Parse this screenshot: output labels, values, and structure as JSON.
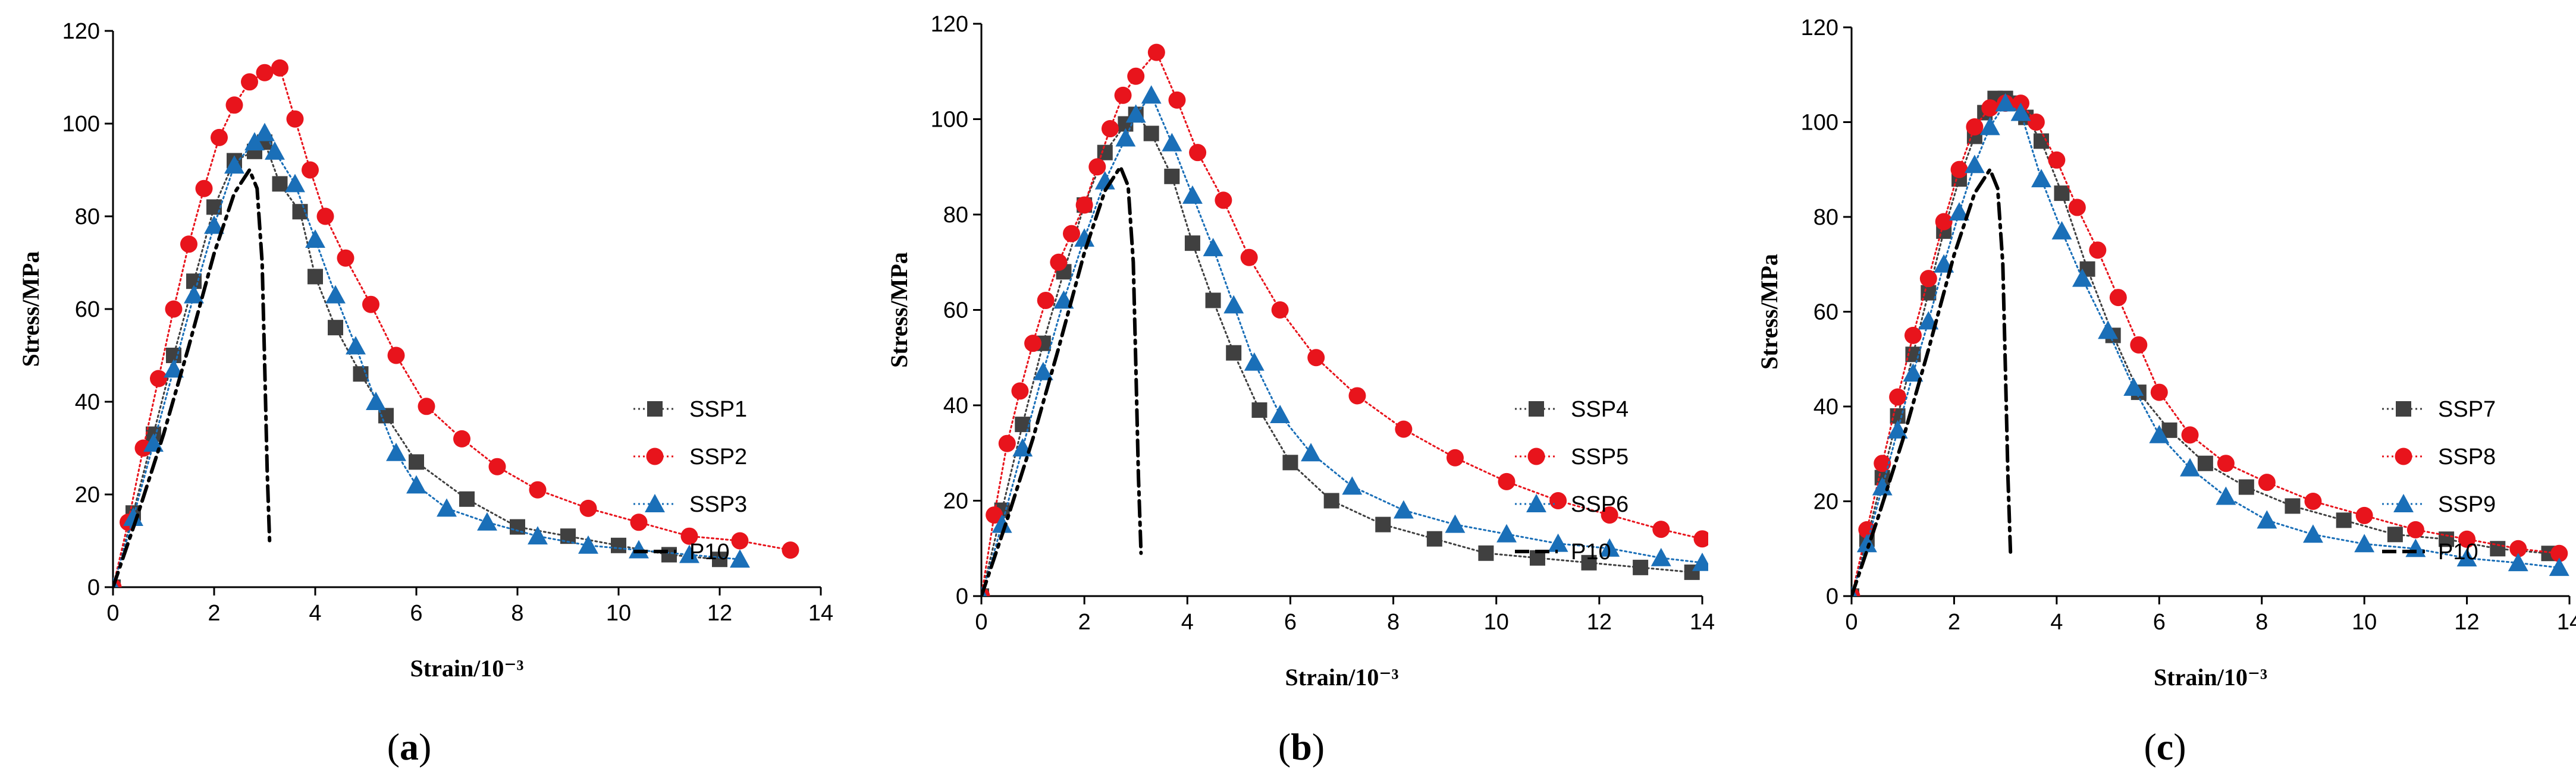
{
  "chart_data": [
    {
      "type": "line",
      "panel_label": "a",
      "xlabel": "Strain/10⁻³",
      "ylabel": "Stress/MPa",
      "xlim": [
        0,
        14
      ],
      "ylim": [
        0,
        120
      ],
      "xticks": [
        0,
        2,
        4,
        6,
        8,
        10,
        12,
        14
      ],
      "yticks": [
        0,
        20,
        40,
        60,
        80,
        100,
        120
      ],
      "legend_position": "right",
      "series": [
        {
          "name": "SSP1",
          "color": "#404040",
          "marker": "square",
          "line_style": "dotted",
          "x": [
            0,
            0.4,
            0.8,
            1.2,
            1.6,
            2.0,
            2.4,
            2.8,
            3.0,
            3.3,
            3.7,
            4.0,
            4.4,
            4.9,
            5.4,
            6.0,
            7.0,
            8.0,
            9.0,
            10.0,
            11.0,
            12.0
          ],
          "y": [
            0,
            16,
            33,
            50,
            66,
            82,
            92,
            94,
            96,
            87,
            81,
            67,
            56,
            46,
            37,
            27,
            19,
            13,
            11,
            9,
            7,
            6
          ]
        },
        {
          "name": "SSP2",
          "color": "#e8141c",
          "marker": "circle",
          "line_style": "dotted",
          "x": [
            0,
            0.3,
            0.6,
            0.9,
            1.2,
            1.5,
            1.8,
            2.1,
            2.4,
            2.7,
            3.0,
            3.3,
            3.6,
            3.9,
            4.2,
            4.6,
            5.1,
            5.6,
            6.2,
            6.9,
            7.6,
            8.4,
            9.4,
            10.4,
            11.4,
            12.4,
            13.4
          ],
          "y": [
            0,
            14,
            30,
            45,
            60,
            74,
            86,
            97,
            104,
            109,
            111,
            112,
            101,
            90,
            80,
            71,
            61,
            50,
            39,
            32,
            26,
            21,
            17,
            14,
            11,
            10,
            8
          ]
        },
        {
          "name": "SSP3",
          "color": "#1a6fb8",
          "marker": "triangle",
          "line_style": "dotted",
          "x": [
            0,
            0.4,
            0.8,
            1.2,
            1.6,
            2.0,
            2.4,
            2.8,
            3.0,
            3.2,
            3.6,
            4.0,
            4.4,
            4.8,
            5.2,
            5.6,
            6.0,
            6.6,
            7.4,
            8.4,
            9.4,
            10.4,
            11.4,
            12.4
          ],
          "y": [
            0,
            15,
            31,
            47,
            63,
            78,
            91,
            96,
            98,
            94,
            87,
            75,
            63,
            52,
            40,
            29,
            22,
            17,
            14,
            11,
            9,
            8,
            7,
            6
          ]
        },
        {
          "name": "P10",
          "color": "#000000",
          "marker": "none",
          "line_style": "dashdot",
          "x": [
            0,
            0.5,
            1.0,
            1.5,
            2.0,
            2.4,
            2.7,
            2.85,
            2.95,
            3.0,
            3.05,
            3.1
          ],
          "y": [
            0,
            16,
            33,
            52,
            72,
            85,
            90,
            86,
            70,
            48,
            25,
            9
          ]
        }
      ]
    },
    {
      "type": "line",
      "panel_label": "b",
      "xlabel": "Strain/10⁻³",
      "ylabel": "Stress/MPa",
      "xlim": [
        0,
        14
      ],
      "ylim": [
        0,
        120
      ],
      "xticks": [
        0,
        2,
        4,
        6,
        8,
        10,
        12,
        14
      ],
      "yticks": [
        0,
        20,
        40,
        60,
        80,
        100,
        120
      ],
      "legend_position": "right",
      "series": [
        {
          "name": "SSP4",
          "color": "#404040",
          "marker": "square",
          "line_style": "dotted",
          "x": [
            0,
            0.4,
            0.8,
            1.2,
            1.6,
            2.0,
            2.4,
            2.8,
            3.0,
            3.3,
            3.7,
            4.1,
            4.5,
            4.9,
            5.4,
            6.0,
            6.8,
            7.8,
            8.8,
            9.8,
            10.8,
            11.8,
            12.8,
            13.8
          ],
          "y": [
            0,
            18,
            36,
            53,
            68,
            82,
            93,
            99,
            101,
            97,
            88,
            74,
            62,
            51,
            39,
            28,
            20,
            15,
            12,
            9,
            8,
            7,
            6,
            5
          ]
        },
        {
          "name": "SSP5",
          "color": "#e8141c",
          "marker": "circle",
          "line_style": "dotted",
          "x": [
            0,
            0.25,
            0.5,
            0.75,
            1.0,
            1.25,
            1.5,
            1.75,
            2.0,
            2.25,
            2.5,
            2.75,
            3.0,
            3.4,
            3.8,
            4.2,
            4.7,
            5.2,
            5.8,
            6.5,
            7.3,
            8.2,
            9.2,
            10.2,
            11.2,
            12.2,
            13.2,
            14.0
          ],
          "y": [
            0,
            17,
            32,
            43,
            53,
            62,
            70,
            76,
            82,
            90,
            98,
            105,
            109,
            114,
            104,
            93,
            83,
            71,
            60,
            50,
            42,
            35,
            29,
            24,
            20,
            17,
            14,
            12
          ]
        },
        {
          "name": "SSP6",
          "color": "#1a6fb8",
          "marker": "triangle",
          "line_style": "dotted",
          "x": [
            0,
            0.4,
            0.8,
            1.2,
            1.6,
            2.0,
            2.4,
            2.8,
            3.0,
            3.3,
            3.7,
            4.1,
            4.5,
            4.9,
            5.3,
            5.8,
            6.4,
            7.2,
            8.2,
            9.2,
            10.2,
            11.2,
            12.2,
            13.2,
            14.0
          ],
          "y": [
            0,
            15,
            31,
            47,
            62,
            75,
            87,
            96,
            101,
            105,
            95,
            84,
            73,
            61,
            49,
            38,
            30,
            23,
            18,
            15,
            13,
            11,
            10,
            8,
            7
          ]
        },
        {
          "name": "P10",
          "color": "#000000",
          "marker": "none",
          "line_style": "dashdot",
          "x": [
            0,
            0.5,
            1.0,
            1.5,
            2.0,
            2.4,
            2.7,
            2.85,
            2.95,
            3.0,
            3.05,
            3.1
          ],
          "y": [
            0,
            16,
            33,
            52,
            72,
            85,
            90,
            86,
            70,
            48,
            25,
            9
          ]
        }
      ]
    },
    {
      "type": "line",
      "panel_label": "c",
      "xlabel": "Strain/10⁻³",
      "ylabel": "Stress/MPa",
      "xlim": [
        0,
        14
      ],
      "ylim": [
        0,
        120
      ],
      "xticks": [
        0,
        2,
        4,
        6,
        8,
        10,
        12,
        14
      ],
      "yticks": [
        0,
        20,
        40,
        60,
        80,
        100,
        120
      ],
      "legend_position": "right",
      "series": [
        {
          "name": "SSP7",
          "color": "#404040",
          "marker": "square",
          "line_style": "dotted",
          "x": [
            0,
            0.3,
            0.6,
            0.9,
            1.2,
            1.5,
            1.8,
            2.1,
            2.4,
            2.6,
            2.8,
            3.0,
            3.2,
            3.4,
            3.7,
            4.1,
            4.6,
            5.1,
            5.6,
            6.2,
            6.9,
            7.7,
            8.6,
            9.6,
            10.6,
            11.6,
            12.6,
            13.6
          ],
          "y": [
            0,
            12,
            25,
            38,
            51,
            64,
            77,
            88,
            97,
            102,
            105,
            105,
            104,
            101,
            96,
            85,
            69,
            55,
            43,
            35,
            28,
            23,
            19,
            16,
            13,
            12,
            10,
            9
          ]
        },
        {
          "name": "SSP8",
          "color": "#e8141c",
          "marker": "circle",
          "line_style": "dotted",
          "x": [
            0,
            0.3,
            0.6,
            0.9,
            1.2,
            1.5,
            1.8,
            2.1,
            2.4,
            2.7,
            3.0,
            3.3,
            3.6,
            4.0,
            4.4,
            4.8,
            5.2,
            5.6,
            6.0,
            6.6,
            7.3,
            8.1,
            9.0,
            10.0,
            11.0,
            12.0,
            13.0,
            13.8
          ],
          "y": [
            0,
            14,
            28,
            42,
            55,
            67,
            79,
            90,
            99,
            103,
            104,
            104,
            100,
            92,
            82,
            73,
            63,
            53,
            43,
            34,
            28,
            24,
            20,
            17,
            14,
            12,
            10,
            9
          ]
        },
        {
          "name": "SSP9",
          "color": "#1a6fb8",
          "marker": "triangle",
          "line_style": "dotted",
          "x": [
            0,
            0.3,
            0.6,
            0.9,
            1.2,
            1.5,
            1.8,
            2.1,
            2.4,
            2.7,
            3.0,
            3.3,
            3.7,
            4.1,
            4.5,
            5.0,
            5.5,
            6.0,
            6.6,
            7.3,
            8.1,
            9.0,
            10.0,
            11.0,
            12.0,
            13.0,
            13.8
          ],
          "y": [
            0,
            11,
            23,
            35,
            47,
            58,
            70,
            81,
            91,
            99,
            104,
            102,
            88,
            77,
            67,
            56,
            44,
            34,
            27,
            21,
            16,
            13,
            11,
            10,
            8,
            7,
            6
          ]
        },
        {
          "name": "P10",
          "color": "#000000",
          "marker": "none",
          "line_style": "dashdot",
          "x": [
            0,
            0.5,
            1.0,
            1.5,
            2.0,
            2.4,
            2.7,
            2.85,
            2.95,
            3.0,
            3.05,
            3.1
          ],
          "y": [
            0,
            16,
            33,
            52,
            72,
            85,
            90,
            86,
            70,
            48,
            25,
            9
          ]
        }
      ]
    }
  ]
}
